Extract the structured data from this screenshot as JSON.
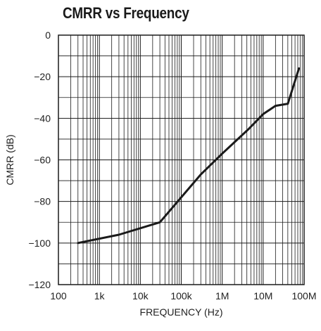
{
  "chart_data": {
    "type": "line",
    "title": "CMRR vs Frequency",
    "xlabel": "FREQUENCY (Hz)",
    "ylabel": "CMRR (dB)",
    "xscale": "log",
    "xlim": [
      100,
      100000000
    ],
    "ylim": [
      -120,
      0
    ],
    "grid": true,
    "x_tick_labels": [
      "100",
      "1k",
      "10k",
      "100k",
      "1M",
      "10M",
      "100M"
    ],
    "y_tick_labels": [
      "0",
      "−20",
      "−40",
      "−60",
      "−80",
      "−100",
      "−120"
    ],
    "series": [
      {
        "color": "#1a1a1a",
        "points": [
          {
            "x": 300,
            "y": -100
          },
          {
            "x": 3000,
            "y": -96
          },
          {
            "x": 30000,
            "y": -90
          },
          {
            "x": 300000,
            "y": -67
          },
          {
            "x": 1000000,
            "y": -57
          },
          {
            "x": 4500000,
            "y": -45
          },
          {
            "x": 10000000,
            "y": -38
          },
          {
            "x": 20000000,
            "y": -34
          },
          {
            "x": 40000000,
            "y": -33
          },
          {
            "x": 75000000,
            "y": -16
          }
        ]
      }
    ]
  }
}
